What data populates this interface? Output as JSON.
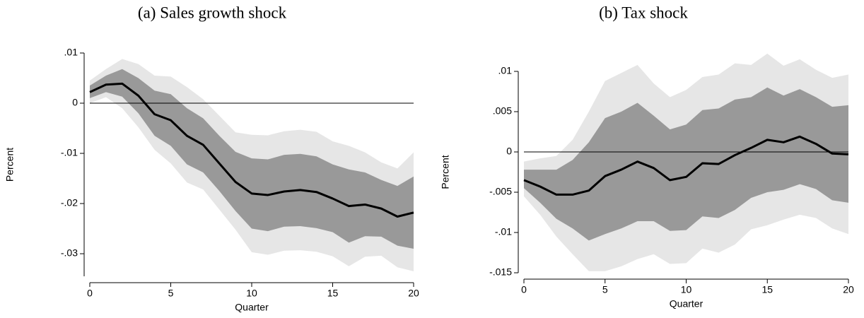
{
  "chart_data": [
    {
      "type": "line",
      "title": "(a) Sales growth shock",
      "xlabel": "Quarter",
      "ylabel": "Percent",
      "x": [
        0,
        1,
        2,
        3,
        4,
        5,
        6,
        7,
        8,
        9,
        10,
        11,
        12,
        13,
        14,
        15,
        16,
        17,
        18,
        19,
        20
      ],
      "xlim": [
        0,
        20
      ],
      "xticks": [
        0,
        5,
        10,
        15,
        20
      ],
      "ylim": [
        -0.0345,
        0.01
      ],
      "yticks": [
        {
          "value": -0.03,
          "label": "-.03"
        },
        {
          "value": -0.02,
          "label": "-.02"
        },
        {
          "value": -0.01,
          "label": "-.01"
        },
        0,
        {
          "value": 0.01,
          "label": ".01"
        }
      ],
      "hline": 0,
      "bands": [
        {
          "color": "#e6e6e6",
          "upper": [
            0.0045,
            0.0068,
            0.0088,
            0.0078,
            0.0055,
            0.0053,
            0.0032,
            0.0008,
            -0.0025,
            -0.0058,
            -0.0063,
            -0.0064,
            -0.0056,
            -0.0053,
            -0.0057,
            -0.0076,
            -0.0085,
            -0.0098,
            -0.0118,
            -0.013,
            -0.0098
          ],
          "lower": [
            0,
            0.0012,
            -0.001,
            -0.0048,
            -0.0093,
            -0.012,
            -0.0158,
            -0.0172,
            -0.0212,
            -0.0252,
            -0.0297,
            -0.0302,
            -0.0294,
            -0.0293,
            -0.0296,
            -0.0305,
            -0.0325,
            -0.0306,
            -0.0304,
            -0.0327,
            -0.0335
          ]
        },
        {
          "color": "#999999",
          "upper": [
            0.0035,
            0.0055,
            0.0068,
            0.005,
            0.0025,
            0.0018,
            -0.001,
            -0.003,
            -0.0065,
            -0.0097,
            -0.011,
            -0.0112,
            -0.0103,
            -0.0101,
            -0.0106,
            -0.0122,
            -0.0132,
            -0.0138,
            -0.0153,
            -0.0165,
            -0.0146
          ],
          "lower": [
            0.001,
            0.0022,
            0.0013,
            -0.002,
            -0.0065,
            -0.0085,
            -0.0122,
            -0.0138,
            -0.0175,
            -0.0215,
            -0.025,
            -0.0255,
            -0.0246,
            -0.0245,
            -0.0249,
            -0.0257,
            -0.0278,
            -0.0265,
            -0.0266,
            -0.0284,
            -0.029
          ]
        }
      ],
      "series": [
        {
          "color": "#000000",
          "values": [
            0.0022,
            0.0037,
            0.0039,
            0.0015,
            -0.0022,
            -0.0034,
            -0.0065,
            -0.0083,
            -0.012,
            -0.0157,
            -0.018,
            -0.0183,
            -0.0176,
            -0.0173,
            -0.0177,
            -0.019,
            -0.0205,
            -0.0202,
            -0.021,
            -0.0226,
            -0.0218
          ]
        }
      ]
    },
    {
      "type": "line",
      "title": "(b) Tax shock",
      "xlabel": "Quarter",
      "ylabel": "Percent",
      "x": [
        0,
        1,
        2,
        3,
        4,
        5,
        6,
        7,
        8,
        9,
        10,
        11,
        12,
        13,
        14,
        15,
        16,
        17,
        18,
        19,
        20
      ],
      "xlim": [
        0,
        20
      ],
      "xticks": [
        0,
        5,
        10,
        15,
        20
      ],
      "ylim": [
        -0.015,
        0.01
      ],
      "yticks": [
        {
          "value": -0.015,
          "label": "-.015"
        },
        {
          "value": -0.01,
          "label": "-.01"
        },
        {
          "value": -0.005,
          "label": "-.005"
        },
        0,
        {
          "value": 0.005,
          "label": ".005"
        },
        {
          "value": 0.01,
          "label": ".01"
        }
      ],
      "hline": 0,
      "bands": [
        {
          "color": "#e6e6e6",
          "upper": [
            -0.0012,
            -0.0008,
            -0.0005,
            0.0015,
            0.005,
            0.0088,
            0.0098,
            0.0108,
            0.0085,
            0.0068,
            0.0077,
            0.0093,
            0.0096,
            0.011,
            0.0108,
            0.0122,
            0.0107,
            0.0115,
            0.0102,
            0.0092,
            0.0096
          ],
          "lower": [
            -0.0055,
            -0.0078,
            -0.0105,
            -0.0127,
            -0.0148,
            -0.0148,
            -0.0142,
            -0.0133,
            -0.0127,
            -0.0139,
            -0.0138,
            -0.012,
            -0.0125,
            -0.0115,
            -0.0096,
            -0.0091,
            -0.0084,
            -0.0078,
            -0.0082,
            -0.0095,
            -0.0102
          ]
        },
        {
          "color": "#999999",
          "upper": [
            -0.0022,
            -0.0022,
            -0.0022,
            -0.001,
            0.0012,
            0.0042,
            0.005,
            0.0061,
            0.0045,
            0.0028,
            0.0034,
            0.0052,
            0.0054,
            0.0065,
            0.0068,
            0.008,
            0.007,
            0.0078,
            0.0068,
            0.0056,
            0.0058
          ],
          "lower": [
            -0.0045,
            -0.0063,
            -0.0083,
            -0.0095,
            -0.011,
            -0.0102,
            -0.0095,
            -0.0086,
            -0.0086,
            -0.0098,
            -0.0097,
            -0.008,
            -0.0082,
            -0.0072,
            -0.0057,
            -0.005,
            -0.0047,
            -0.004,
            -0.0046,
            -0.006,
            -0.0063
          ]
        }
      ],
      "series": [
        {
          "color": "#000000",
          "values": [
            -0.0035,
            -0.0043,
            -0.0053,
            -0.0053,
            -0.0048,
            -0.003,
            -0.0022,
            -0.0012,
            -0.002,
            -0.0035,
            -0.0031,
            -0.0014,
            -0.0015,
            -0.0004,
            0.0005,
            0.0015,
            0.0012,
            0.0019,
            0.001,
            -0.0002,
            -0.0003
          ]
        }
      ]
    }
  ]
}
